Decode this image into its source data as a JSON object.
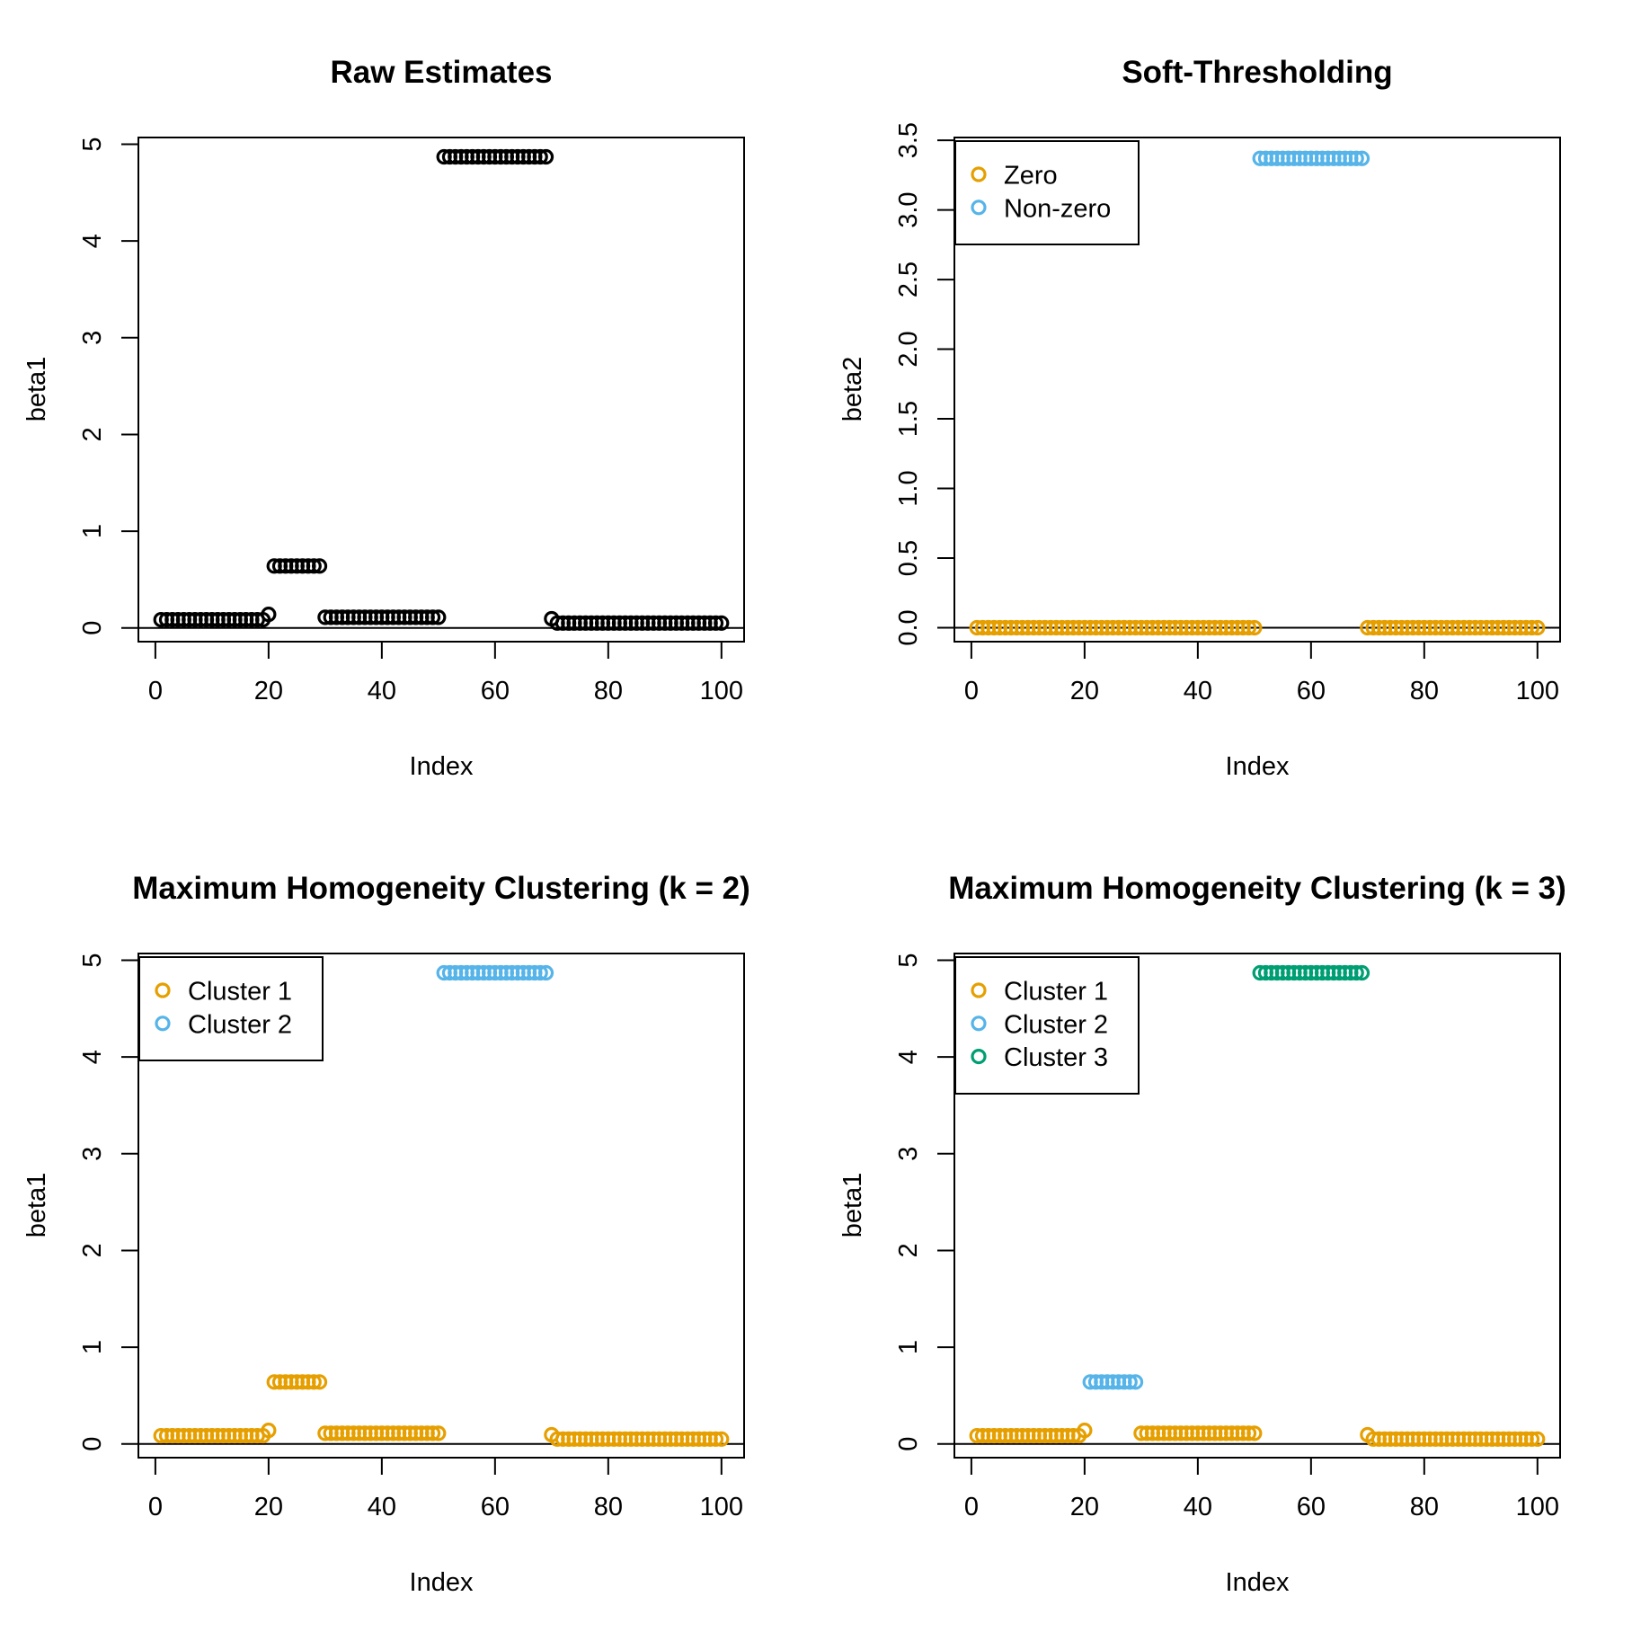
{
  "palette": {
    "black": "#000000",
    "orange": "#E69F00",
    "skyblue": "#56B4E9",
    "green": "#009E73"
  },
  "chart_data": [
    {
      "type": "scatter",
      "title": "Raw Estimates",
      "xlabel": "Index",
      "ylabel": "beta1",
      "xlim": [
        -3,
        104
      ],
      "ylim": [
        -0.142,
        5.07
      ],
      "xticks": [
        0,
        20,
        40,
        60,
        80,
        100
      ],
      "yticks": [
        {
          "v": 0,
          "label": "0"
        },
        {
          "v": 1,
          "label": "1"
        },
        {
          "v": 2,
          "label": "2"
        },
        {
          "v": 3,
          "label": "3"
        },
        {
          "v": 4,
          "label": "4"
        },
        {
          "v": 5,
          "label": "5"
        }
      ],
      "zero_line": true,
      "grid": false,
      "legend": null,
      "marker": "open-circle",
      "series": [
        {
          "name": "raw-estimates",
          "color": "black",
          "groups": [
            {
              "from": 1,
              "to": 19,
              "y": 0.085
            },
            {
              "from": 20,
              "to": 20,
              "y": 0.14
            },
            {
              "from": 21,
              "to": 29,
              "y": 0.64
            },
            {
              "from": 30,
              "to": 50,
              "y": 0.11
            },
            {
              "from": 51,
              "to": 69,
              "y": 4.87
            },
            {
              "from": 70,
              "to": 70,
              "y": 0.095
            },
            {
              "from": 71,
              "to": 100,
              "y": 0.05
            }
          ]
        }
      ]
    },
    {
      "type": "scatter",
      "title": "Soft-Thresholding",
      "xlabel": "Index",
      "ylabel": "beta2",
      "xlim": [
        -3,
        104
      ],
      "ylim": [
        -0.1,
        3.52
      ],
      "xticks": [
        0,
        20,
        40,
        60,
        80,
        100
      ],
      "yticks": [
        {
          "v": 0,
          "label": "0.0"
        },
        {
          "v": 0.5,
          "label": "0.5"
        },
        {
          "v": 1,
          "label": "1.0"
        },
        {
          "v": 1.5,
          "label": "1.5"
        },
        {
          "v": 2,
          "label": "2.0"
        },
        {
          "v": 2.5,
          "label": "2.5"
        },
        {
          "v": 3,
          "label": "3.0"
        },
        {
          "v": 3.5,
          "label": "3.5"
        }
      ],
      "zero_line": true,
      "grid": false,
      "legend": {
        "position": "topleft",
        "items": [
          {
            "label": "Zero",
            "color": "orange"
          },
          {
            "label": "Non-zero",
            "color": "skyblue"
          }
        ]
      },
      "marker": "open-circle",
      "series": [
        {
          "name": "Zero",
          "color": "orange",
          "groups": [
            {
              "from": 1,
              "to": 50,
              "y": 0
            },
            {
              "from": 70,
              "to": 100,
              "y": 0
            }
          ]
        },
        {
          "name": "Non-zero",
          "color": "skyblue",
          "groups": [
            {
              "from": 51,
              "to": 69,
              "y": 3.37
            }
          ]
        }
      ]
    },
    {
      "type": "scatter",
      "title": "Maximum Homogeneity Clustering (k = 2)",
      "xlabel": "Index",
      "ylabel": "beta1",
      "xlim": [
        -3,
        104
      ],
      "ylim": [
        -0.142,
        5.07
      ],
      "xticks": [
        0,
        20,
        40,
        60,
        80,
        100
      ],
      "yticks": [
        {
          "v": 0,
          "label": "0"
        },
        {
          "v": 1,
          "label": "1"
        },
        {
          "v": 2,
          "label": "2"
        },
        {
          "v": 3,
          "label": "3"
        },
        {
          "v": 4,
          "label": "4"
        },
        {
          "v": 5,
          "label": "5"
        }
      ],
      "zero_line": true,
      "grid": false,
      "legend": {
        "position": "topleft",
        "items": [
          {
            "label": "Cluster 1",
            "color": "orange"
          },
          {
            "label": "Cluster 2",
            "color": "skyblue"
          }
        ]
      },
      "marker": "open-circle",
      "series": [
        {
          "name": "Cluster 1",
          "color": "orange",
          "groups": [
            {
              "from": 1,
              "to": 19,
              "y": 0.085
            },
            {
              "from": 20,
              "to": 20,
              "y": 0.14
            },
            {
              "from": 21,
              "to": 29,
              "y": 0.64
            },
            {
              "from": 30,
              "to": 50,
              "y": 0.11
            },
            {
              "from": 70,
              "to": 70,
              "y": 0.095
            },
            {
              "from": 71,
              "to": 100,
              "y": 0.05
            }
          ]
        },
        {
          "name": "Cluster 2",
          "color": "skyblue",
          "groups": [
            {
              "from": 51,
              "to": 69,
              "y": 4.87
            }
          ]
        }
      ]
    },
    {
      "type": "scatter",
      "title": "Maximum Homogeneity Clustering (k = 3)",
      "xlabel": "Index",
      "ylabel": "beta1",
      "xlim": [
        -3,
        104
      ],
      "ylim": [
        -0.142,
        5.07
      ],
      "xticks": [
        0,
        20,
        40,
        60,
        80,
        100
      ],
      "yticks": [
        {
          "v": 0,
          "label": "0"
        },
        {
          "v": 1,
          "label": "1"
        },
        {
          "v": 2,
          "label": "2"
        },
        {
          "v": 3,
          "label": "3"
        },
        {
          "v": 4,
          "label": "4"
        },
        {
          "v": 5,
          "label": "5"
        }
      ],
      "zero_line": true,
      "grid": false,
      "legend": {
        "position": "topleft",
        "items": [
          {
            "label": "Cluster 1",
            "color": "orange"
          },
          {
            "label": "Cluster 2",
            "color": "skyblue"
          },
          {
            "label": "Cluster 3",
            "color": "green"
          }
        ]
      },
      "marker": "open-circle",
      "series": [
        {
          "name": "Cluster 1",
          "color": "orange",
          "groups": [
            {
              "from": 1,
              "to": 19,
              "y": 0.085
            },
            {
              "from": 20,
              "to": 20,
              "y": 0.14
            },
            {
              "from": 30,
              "to": 50,
              "y": 0.11
            },
            {
              "from": 70,
              "to": 70,
              "y": 0.095
            },
            {
              "from": 71,
              "to": 100,
              "y": 0.05
            }
          ]
        },
        {
          "name": "Cluster 2",
          "color": "skyblue",
          "groups": [
            {
              "from": 21,
              "to": 29,
              "y": 0.64
            }
          ]
        },
        {
          "name": "Cluster 3",
          "color": "green",
          "groups": [
            {
              "from": 51,
              "to": 69,
              "y": 4.87
            }
          ]
        }
      ]
    }
  ]
}
